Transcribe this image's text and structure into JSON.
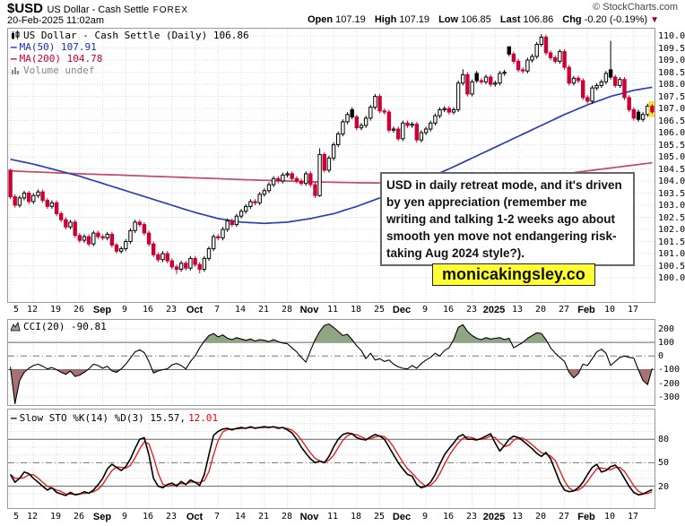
{
  "header": {
    "symbol": "$USD",
    "title": "US Dollar - Cash Settle",
    "exchange": "FOREX",
    "datetime": "20-Feb-2025 11:02am",
    "copyright": "© StockCharts.com",
    "quote": [
      {
        "label": "Open",
        "value": "107.19"
      },
      {
        "label": "High",
        "value": "107.19"
      },
      {
        "label": "Low",
        "value": "106.85"
      },
      {
        "label": "Last",
        "value": "106.86"
      },
      {
        "label": "Chg",
        "value": "-0.20 (-0.19%)"
      }
    ],
    "chg_arrow": "▼"
  },
  "legend": {
    "main": "US Dollar - Cash Settle (Daily) 106.86",
    "ma50": "MA(50) 107.91",
    "ma200": "MA(200) 104.78",
    "volume": "Volume undef",
    "cci": "CCI(20) -90.81",
    "sto_main": "Slow STO %K(14) %D(3) 15.57,",
    "sto_d": "12.01"
  },
  "annotation": {
    "text": "USD in daily retreat mode, and it's driven by yen appreciation (remember me writing and talking 1-2 weeks ago about smooth yen move not endangering risk-taking Aug 2024 style?)."
  },
  "watermark": "monicakingsley.co",
  "colors": {
    "candle_down": "#cc0033",
    "candle_up_fill": "#ffffff",
    "candle_black": "#000000",
    "ma50": "#2b3fb4",
    "ma200": "#c84862",
    "cci_line": "#000000",
    "cci_fill_above": "#8fa584",
    "cci_fill_below": "#a87272",
    "sto_k": "#000000",
    "sto_d": "#ee1111",
    "grid_light": "#d9d9d9",
    "grid_dark": "#777777",
    "band_line": "#666666",
    "highlight": "#ffff2e",
    "highlight_edge": "#d8c400"
  },
  "chart_data": [
    {
      "type": "candlestick",
      "title": "US Dollar - Cash Settle (Daily)",
      "last_value": 106.86,
      "y_range": [
        99.0,
        110.3
      ],
      "y_ticks": [
        110.0,
        109.5,
        109.0,
        108.5,
        108.0,
        107.5,
        107.0,
        106.5,
        106.0,
        105.5,
        105.0,
        104.5,
        104.0,
        103.5,
        103.0,
        102.5,
        102.0,
        101.5,
        101.0,
        100.5,
        100.0
      ],
      "x_labels": [
        "5",
        "12",
        "19",
        "26",
        "Sep",
        "9",
        "16",
        "23",
        "Oct",
        "7",
        "14",
        "21",
        "28",
        "Nov",
        "11",
        "18",
        "25",
        "Dec",
        "9",
        "16",
        "23",
        "2025",
        "13",
        "20",
        "27",
        "Feb",
        "10",
        "17"
      ],
      "x_bold_indexes": [
        4,
        8,
        13,
        17,
        21,
        25
      ],
      "days_per_label": 5,
      "first_open": 104.45,
      "closes": [
        103.35,
        103.0,
        103.3,
        103.5,
        103.15,
        103.4,
        103.55,
        103.2,
        102.95,
        103.1,
        102.65,
        102.4,
        102.1,
        102.3,
        101.75,
        101.55,
        101.7,
        101.4,
        101.85,
        101.7,
        101.65,
        101.8,
        101.35,
        101.1,
        101.2,
        101.5,
        101.95,
        102.3,
        102.2,
        101.85,
        101.4,
        100.95,
        100.75,
        101.0,
        100.7,
        100.45,
        100.35,
        100.6,
        100.4,
        100.8,
        100.55,
        100.35,
        100.8,
        101.2,
        101.7,
        101.65,
        102.0,
        102.35,
        102.2,
        102.55,
        102.75,
        102.95,
        103.15,
        103.1,
        103.45,
        103.6,
        103.85,
        104.1,
        104.0,
        104.25,
        104.3,
        104.1,
        104.0,
        103.9,
        104.3,
        103.85,
        103.4,
        105.1,
        104.45,
        104.95,
        105.5,
        105.95,
        106.45,
        106.75,
        106.65,
        106.2,
        106.3,
        106.6,
        107.05,
        107.5,
        106.9,
        106.85,
        106.1,
        106.15,
        105.75,
        106.4,
        106.3,
        106.35,
        105.7,
        106.0,
        106.15,
        106.4,
        106.7,
        106.95,
        107.0,
        106.85,
        106.95,
        108.05,
        108.4,
        107.6,
        108.1,
        108.15,
        108.1,
        108.3,
        108.0,
        108.05,
        108.45,
        108.5,
        109.25,
        108.95,
        108.6,
        108.55,
        109.0,
        109.15,
        109.65,
        109.95,
        109.3,
        109.1,
        108.95,
        109.35,
        108.7,
        108.05,
        108.25,
        108.15,
        107.45,
        107.3,
        107.85,
        107.95,
        108.1,
        108.45,
        108.3,
        107.95,
        108.2,
        107.45,
        106.95,
        106.6,
        106.55,
        106.75,
        107.1,
        106.86
      ],
      "wick_overrides": {
        "0": [
          104.5,
          null
        ],
        "36": [
          null,
          100.16
        ],
        "41": [
          null,
          100.18
        ],
        "67": [
          105.35,
          103.35
        ],
        "98": [
          108.62,
          null
        ],
        "108": [
          109.55,
          null
        ],
        "115": [
          110.07,
          null
        ],
        "130": [
          109.8,
          null
        ]
      },
      "black_days": [
        74,
        101,
        108,
        130,
        136
      ],
      "highlight_last": true,
      "ma50_anchors": [
        104.9,
        104.7,
        104.45,
        104.2,
        103.9,
        103.6,
        103.3,
        103.0,
        102.7,
        102.45,
        102.3,
        102.25,
        102.3,
        102.45,
        102.65,
        102.95,
        103.3,
        103.7,
        104.1,
        104.5,
        104.95,
        105.4,
        105.85,
        106.3,
        106.75,
        107.15,
        107.5,
        107.75,
        107.91
      ],
      "ma200_anchors": [
        104.42,
        104.38,
        104.34,
        104.3,
        104.27,
        104.24,
        104.2,
        104.17,
        104.13,
        104.1,
        104.06,
        104.03,
        104.0,
        103.97,
        103.95,
        103.93,
        103.92,
        103.93,
        103.95,
        103.97,
        104.0,
        104.05,
        104.12,
        104.2,
        104.3,
        104.42,
        104.54,
        104.66,
        104.78
      ]
    },
    {
      "type": "area-line",
      "name": "CCI(20)",
      "current": -90.81,
      "y_range": [
        -360,
        265
      ],
      "y_ticks": [
        200,
        100,
        0,
        -100,
        -200,
        -300
      ],
      "band_upper": 100,
      "band_lower": -100,
      "values": [
        -80,
        -350,
        -180,
        -120,
        -90,
        -70,
        -60,
        -75,
        -95,
        -85,
        -100,
        -120,
        -135,
        -110,
        -150,
        -140,
        -120,
        -95,
        -60,
        -70,
        -90,
        -75,
        -110,
        -120,
        -95,
        -60,
        -15,
        30,
        45,
        25,
        -40,
        -125,
        -110,
        -100,
        -95,
        -65,
        -55,
        -70,
        -95,
        -40,
        0,
        60,
        110,
        150,
        165,
        140,
        155,
        130,
        120,
        135,
        125,
        115,
        125,
        110,
        120,
        115,
        105,
        120,
        105,
        95,
        90,
        60,
        30,
        -10,
        -45,
        40,
        120,
        180,
        225,
        235,
        210,
        180,
        150,
        160,
        120,
        75,
        40,
        -20,
        20,
        -30,
        -20,
        -40,
        -30,
        -60,
        -80,
        -90,
        -95,
        -70,
        -90,
        -55,
        -30,
        -10,
        20,
        0,
        40,
        60,
        120,
        210,
        230,
        180,
        150,
        130,
        120,
        135,
        125,
        130,
        135,
        120,
        130,
        60,
        80,
        100,
        130,
        150,
        170,
        165,
        120,
        60,
        20,
        -10,
        -40,
        -120,
        -160,
        -130,
        -60,
        -70,
        -20,
        30,
        50,
        20,
        -70,
        -40,
        -10,
        0,
        -10,
        -15,
        -100,
        -180,
        -210,
        -90.81
      ]
    },
    {
      "type": "line",
      "name": "Slow STO %K(14) %D(3)",
      "k_current": 15.57,
      "d_current": 12.01,
      "y_range": [
        -8,
        118
      ],
      "y_ticks": [
        80,
        50,
        20
      ],
      "band_upper": 80,
      "band_mid": 50,
      "band_lower": 20,
      "d_period": 3,
      "k_values": [
        35,
        25,
        30,
        38,
        36,
        30,
        25,
        20,
        15,
        18,
        12,
        10,
        8,
        12,
        9,
        10,
        13,
        11,
        15,
        22,
        30,
        42,
        48,
        44,
        40,
        45,
        55,
        68,
        80,
        82,
        60,
        30,
        20,
        18,
        22,
        24,
        20,
        26,
        22,
        28,
        25,
        21,
        35,
        60,
        85,
        90,
        93,
        94,
        92,
        94,
        95,
        94,
        96,
        94,
        95,
        96,
        95,
        96,
        94,
        95,
        92,
        88,
        80,
        70,
        62,
        55,
        50,
        52,
        50,
        58,
        70,
        80,
        86,
        88,
        87,
        82,
        80,
        79,
        83,
        86,
        84,
        80,
        70,
        60,
        50,
        42,
        35,
        33,
        22,
        18,
        20,
        25,
        35,
        48,
        60,
        68,
        75,
        83,
        86,
        80,
        80,
        79,
        81,
        84,
        87,
        75,
        65,
        72,
        80,
        84,
        82,
        78,
        73,
        68,
        62,
        58,
        63,
        55,
        40,
        25,
        15,
        13,
        14,
        18,
        25,
        35,
        44,
        48,
        38,
        40,
        45,
        47,
        40,
        30,
        20,
        12,
        9,
        10,
        13,
        15.57
      ]
    }
  ]
}
